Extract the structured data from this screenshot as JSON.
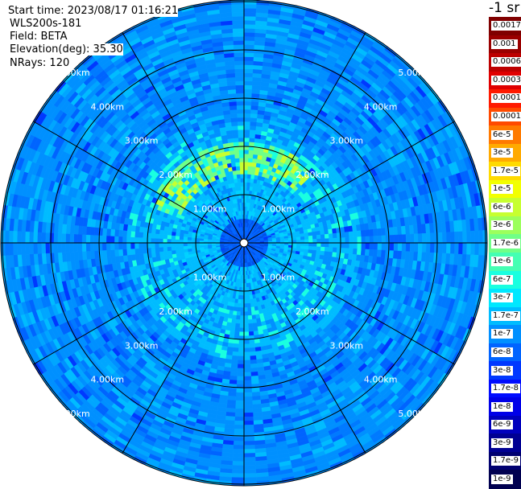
{
  "header": {
    "start_time": "Start time: 2023/08/17 01:16:21",
    "instrument": "WLS200s-181",
    "field": "Field: BETA",
    "elevation": "Elevation(deg): 35.30",
    "nrays": "NRays: 120"
  },
  "colorbar": {
    "unit_label": "-1 sr",
    "labels": [
      "0.0017",
      "0.001",
      "0.0006",
      "0.0003",
      "0.00017",
      "0.0001",
      "6e-5",
      "3e-5",
      "1.7e-5",
      "1e-5",
      "6e-6",
      "3e-6",
      "1.7e-6",
      "1e-6",
      "6e-7",
      "3e-7",
      "1.7e-7",
      "1e-7",
      "6e-8",
      "3e-8",
      "1.7e-8",
      "1e-8",
      "6e-9",
      "3e-9",
      "1.7e-9",
      "1e-9"
    ],
    "colors": [
      "#800000",
      "#9a0000",
      "#bd0000",
      "#e00000",
      "#ff1a00",
      "#ff4a00",
      "#ff7a00",
      "#ffaa00",
      "#ffda00",
      "#f2ff00",
      "#c7ff30",
      "#9cff5c",
      "#70ff87",
      "#44ffb3",
      "#19ffe0",
      "#00e8ff",
      "#00bcff",
      "#0090ff",
      "#0064ff",
      "#0038ff",
      "#000cff",
      "#0000e8",
      "#0000bd",
      "#000092",
      "#000070",
      "#000050"
    ]
  },
  "chart_data": {
    "type": "heatmap",
    "projection": "polar (PPI)",
    "field": "BETA",
    "start_time": "2023/08/17 01:16:21",
    "elevation_deg": 35.3,
    "nrays": 120,
    "range_rings_km": [
      1,
      2,
      3,
      4,
      5
    ],
    "ring_labels": [
      "1.00km",
      "2.00km",
      "3.00km",
      "4.00km",
      "5.00km"
    ],
    "spokes_every_deg": 30,
    "max_range_km": 5.7,
    "dominant_value_range": [
      "6e-8",
      "1.7e-7"
    ],
    "near_range_band_values": [
      "1e-7",
      "3e-7"
    ],
    "arc_feature": {
      "range_km": [
        1.4,
        2.1
      ],
      "azimuth_deg": [
        -70,
        40
      ],
      "values": [
        "1e-6",
        "1e-5"
      ]
    },
    "colorscale": "jet, log",
    "vmin": "1e-9",
    "vmax": "0.0017"
  }
}
